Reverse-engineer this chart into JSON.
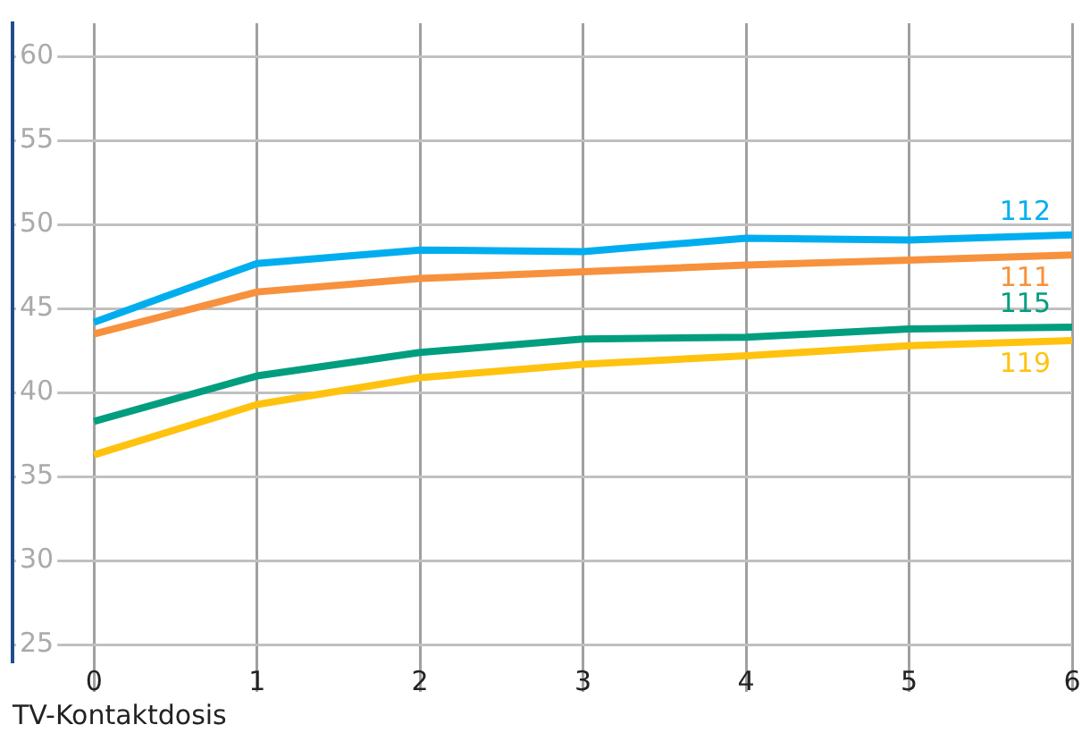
{
  "chart_data": {
    "type": "line",
    "xlabel": "TV-Kontaktdosis",
    "x": [
      0,
      1,
      2,
      3,
      4,
      5,
      6
    ],
    "xlim": [
      -0.5,
      6
    ],
    "xticks": [
      0,
      1,
      2,
      3,
      4,
      5,
      6
    ],
    "ylim": [
      24,
      62
    ],
    "yticks": [
      25,
      30,
      35,
      40,
      45,
      50,
      55,
      60
    ],
    "grid": true,
    "legend": false,
    "marker": "none",
    "line_style": "solid",
    "series": [
      {
        "name": "112",
        "color": "#00aeef",
        "values": [
          44.2,
          47.7,
          48.5,
          48.4,
          49.2,
          49.1,
          49.4
        ]
      },
      {
        "name": "111",
        "color": "#f7913d",
        "values": [
          43.5,
          46.0,
          46.8,
          47.2,
          47.6,
          47.9,
          48.2
        ]
      },
      {
        "name": "115",
        "color": "#009e7e",
        "values": [
          38.3,
          41.0,
          42.4,
          43.2,
          43.3,
          43.8,
          43.9
        ]
      },
      {
        "name": "119",
        "color": "#ffc20e",
        "values": [
          36.3,
          39.3,
          40.9,
          41.7,
          42.2,
          42.8,
          43.1
        ]
      }
    ]
  }
}
